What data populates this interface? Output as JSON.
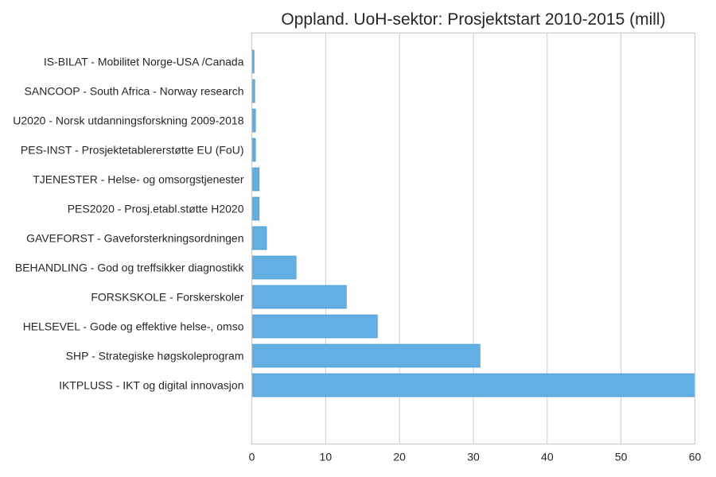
{
  "chart_data": {
    "type": "bar",
    "orientation": "horizontal",
    "title": "Oppland. UoH-sektor: Prosjektstart 2010-2015 (mill)",
    "xlabel": "",
    "ylabel": "",
    "xlim": [
      0,
      60
    ],
    "x_ticks": [
      "0",
      "10",
      "20",
      "30",
      "40",
      "50",
      "60"
    ],
    "grid": "vertical",
    "bar_color": "#5dade2",
    "categories": [
      "IS-BILAT - Mobilitet Norge-USA /Canada",
      "SANCOOP - South Africa - Norway research",
      "U2020 - Norsk utdanningsforskning 2009-2018",
      "PES-INST - Prosjektetablererstøtte EU (FoU)",
      "TJENESTER - Helse- og omsorgstjenester",
      "PES2020 - Prosj.etabl.støtte H2020",
      "GAVEFORST - Gaveforsterkningsordningen",
      "BEHANDLING - God og treffsikker diagnostikk",
      "FORSKSKOLE - Forskerskoler",
      "HELSEVEL - Gode og effektive helse-, omso",
      "SHP - Strategiske høgskoleprogram",
      "IKTPLUSS - IKT og digital innovasjon"
    ],
    "values": [
      0.3,
      0.4,
      0.5,
      0.5,
      1.0,
      1.0,
      2.0,
      6.0,
      12.8,
      17.0,
      30.9,
      60.0
    ]
  }
}
